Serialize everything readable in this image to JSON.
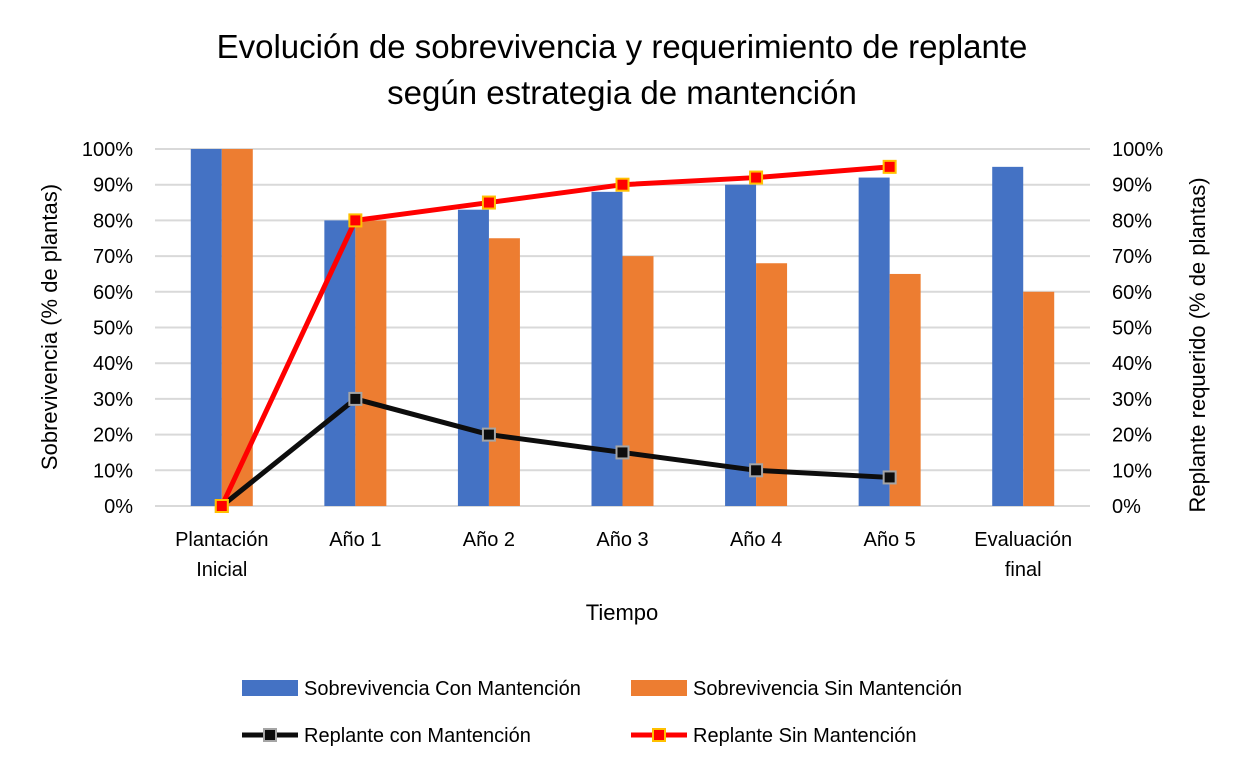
{
  "chart_data": {
    "type": "bar",
    "title": [
      "Evolución de sobrevivencia y requerimiento de replante",
      "según estrategia de mantención"
    ],
    "xlabel": "Tiempo",
    "ylabel": "Sobrevivencia (% de plantas)",
    "y2label": "Replante requerido (% de plantas)",
    "categories": [
      [
        "Plantación",
        "Inicial"
      ],
      [
        "Año 1"
      ],
      [
        "Año 2"
      ],
      [
        "Año 3"
      ],
      [
        "Año 4"
      ],
      [
        "Año 5"
      ],
      [
        "Evaluación",
        "final"
      ]
    ],
    "ylim": [
      0,
      100
    ],
    "y2lim": [
      0,
      100
    ],
    "yticks": [
      "0%",
      "10%",
      "20%",
      "30%",
      "40%",
      "50%",
      "60%",
      "70%",
      "80%",
      "90%",
      "100%"
    ],
    "grid": true,
    "legend_placement": "bottom",
    "bar_series": [
      {
        "name": "Sobrevivencia Con Mantención",
        "color": "#4472C4",
        "values": [
          100,
          80,
          83,
          88,
          90,
          92,
          95
        ]
      },
      {
        "name": "Sobrevivencia Sin Mantención",
        "color": "#ED7D31",
        "values": [
          100,
          80,
          75,
          70,
          68,
          65,
          60
        ]
      }
    ],
    "line_series": [
      {
        "name": "Replante con Mantención",
        "axis": "secondary",
        "color": "#0D0D0D",
        "marker_fill": "#0D0D0D",
        "marker_edge": "#A5A5A5",
        "values": [
          0,
          30,
          20,
          15,
          10,
          8,
          null
        ]
      },
      {
        "name": "Replante Sin Mantención",
        "axis": "secondary",
        "color": "#FF0000",
        "marker_fill": "#FF0000",
        "marker_edge": "#FFC000",
        "values": [
          0,
          80,
          85,
          90,
          92,
          95,
          null
        ]
      }
    ]
  }
}
